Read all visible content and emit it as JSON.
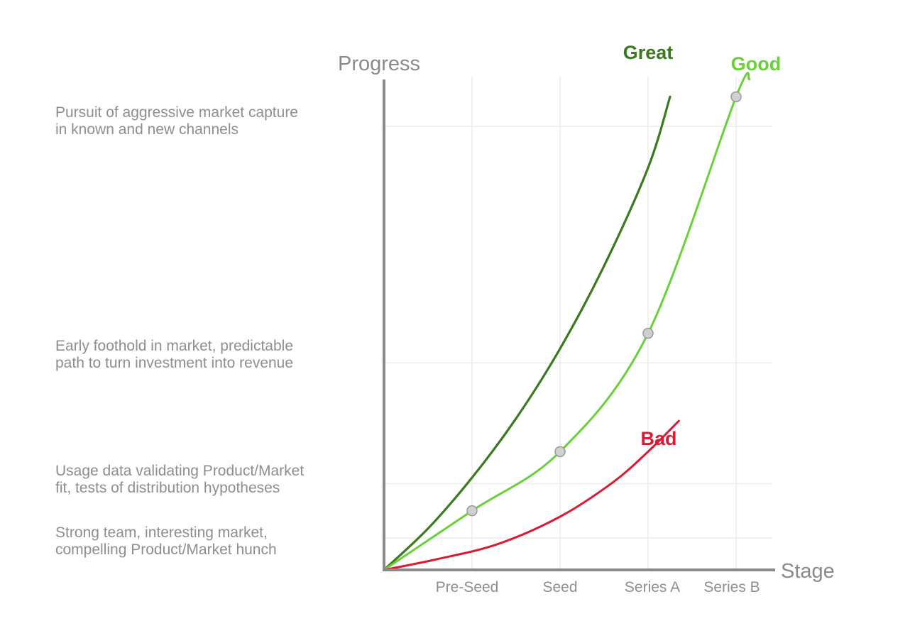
{
  "chart_data": {
    "type": "line",
    "xlabel": "Stage",
    "ylabel": "Progress",
    "x_categories": [
      "Pre-Seed",
      "Seed",
      "Series A",
      "Series B"
    ],
    "y_levels": [
      [
        "Strong team, interesting market,",
        "compelling Product/Market hunch"
      ],
      [
        "Usage data validating Product/Market",
        "fit, tests of distribution hypotheses"
      ],
      [
        "Early foothold in market, predictable",
        "path to turn investment into revenue"
      ],
      [
        "Pursuit of aggressive market capture",
        "in known and new channels"
      ]
    ],
    "x_range": [
      0,
      4.5
    ],
    "y_range": [
      0,
      4.2
    ],
    "grid": true,
    "series": [
      {
        "name": "Great",
        "color": "#3a7a1e",
        "points": [
          [
            0,
            0
          ],
          [
            0.5,
            0.35
          ],
          [
            1,
            0.78
          ],
          [
            1.5,
            1.28
          ],
          [
            2,
            1.87
          ],
          [
            2.5,
            2.57
          ],
          [
            3,
            3.4
          ],
          [
            3.25,
            4.0
          ]
        ]
      },
      {
        "name": "Good",
        "color": "#6ad03a",
        "points": [
          [
            0,
            0
          ],
          [
            1,
            0.5
          ],
          [
            2,
            1.0
          ],
          [
            3,
            2.0
          ],
          [
            4,
            4.0
          ],
          [
            4.15,
            4.15
          ]
        ],
        "markers": [
          [
            1,
            0.5
          ],
          [
            2,
            1.0
          ],
          [
            3,
            2.0
          ],
          [
            4,
            4.0
          ]
        ]
      },
      {
        "name": "Bad",
        "color": "#dc1a34",
        "points": [
          [
            0,
            0
          ],
          [
            0.6,
            0.09
          ],
          [
            1.3,
            0.22
          ],
          [
            2,
            0.45
          ],
          [
            2.6,
            0.74
          ],
          [
            3,
            1.0
          ],
          [
            3.35,
            1.26
          ]
        ]
      }
    ]
  }
}
